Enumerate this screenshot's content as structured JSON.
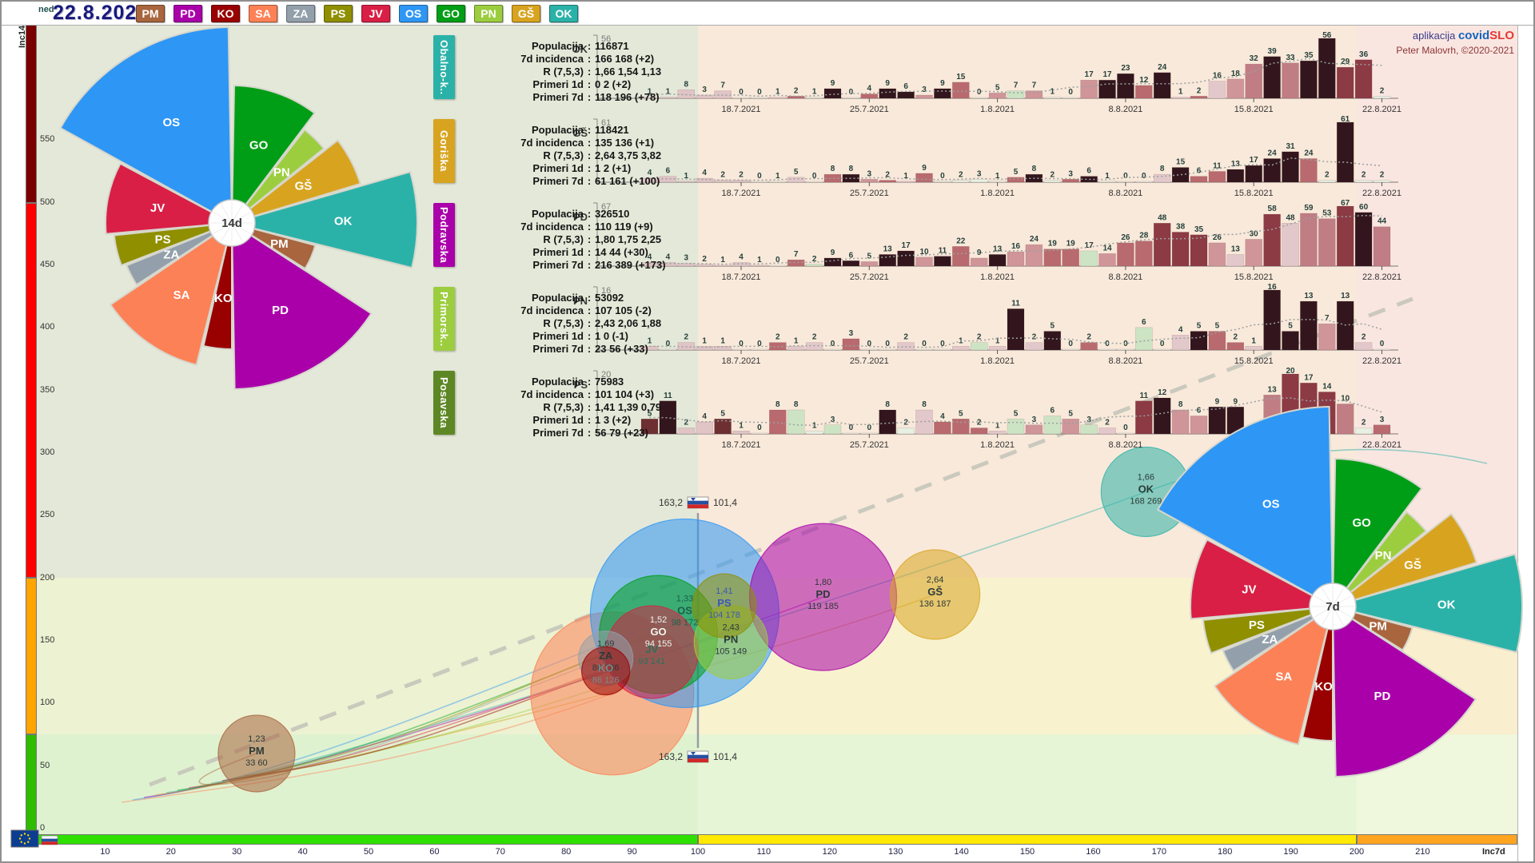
{
  "header": {
    "weekday_label": "ned",
    "date_label": "22.8.2021",
    "region_badges": [
      {
        "code": "PM",
        "color": "#a8653e"
      },
      {
        "code": "PD",
        "color": "#aa00aa"
      },
      {
        "code": "KO",
        "color": "#990000"
      },
      {
        "code": "SA",
        "color": "#fd8156"
      },
      {
        "code": "ZA",
        "color": "#93a0ab"
      },
      {
        "code": "PS",
        "color": "#8f8f00"
      },
      {
        "code": "JV",
        "color": "#d91f45"
      },
      {
        "code": "OS",
        "color": "#2e96f5"
      },
      {
        "code": "GO",
        "color": "#009e16"
      },
      {
        "code": "PN",
        "color": "#9ccd3f"
      },
      {
        "code": "GŠ",
        "color": "#d8a420"
      },
      {
        "code": "OK",
        "color": "#2bb2a8"
      }
    ]
  },
  "credit": {
    "prefix": "aplikacija ",
    "brand_blue": "covid",
    "brand_red": "SLO",
    "author_line": "Peter Malovrh, ©2020-2021"
  },
  "axis": {
    "y_label": "Inc14d",
    "x_label": "Inc7d",
    "y_ticks": [
      "0",
      "50",
      "100",
      "150",
      "200",
      "250",
      "300",
      "350",
      "400",
      "450",
      "500",
      "550"
    ],
    "x_ticks": [
      "10",
      "20",
      "30",
      "40",
      "50",
      "60",
      "70",
      "80",
      "90",
      "100",
      "110",
      "120",
      "130",
      "140",
      "150",
      "160",
      "170",
      "180",
      "190",
      "200",
      "210"
    ]
  },
  "national_markers": [
    {
      "left": "163,2",
      "right": "101,4"
    },
    {
      "left": "163,2",
      "right": "101,4"
    }
  ],
  "info_panels": [
    {
      "name": "Obalno-k..",
      "tab_color": "#2bb2a8",
      "rows": [
        {
          "label": "Populacija",
          "value": "116871"
        },
        {
          "label": "7d incidenca",
          "value": "166 168 (+2)"
        },
        {
          "label": "R (7,5,3)",
          "value": "1,66 1,54 1,13"
        },
        {
          "label": "Primeri 1d",
          "value": "0 2 (+2)"
        },
        {
          "label": "Primeri 7d",
          "value": "118 196 (+78)"
        }
      ]
    },
    {
      "name": "Goriška",
      "tab_color": "#d8a420",
      "rows": [
        {
          "label": "Populacija",
          "value": "118421"
        },
        {
          "label": "7d incidenca",
          "value": "135 136 (+1)"
        },
        {
          "label": "R (7,5,3)",
          "value": "2,64 3,75 3,82"
        },
        {
          "label": "Primeri 1d",
          "value": "1 2 (+1)"
        },
        {
          "label": "Primeri 7d",
          "value": "61 161 (+100)"
        }
      ]
    },
    {
      "name": "Podravska",
      "tab_color": "#aa00aa",
      "rows": [
        {
          "label": "Populacija",
          "value": "326510"
        },
        {
          "label": "7d incidenca",
          "value": "110 119 (+9)"
        },
        {
          "label": "R (7,5,3)",
          "value": "1,80 1,75 2,25"
        },
        {
          "label": "Primeri 1d",
          "value": "14 44 (+30)"
        },
        {
          "label": "Primeri 7d",
          "value": "216 389 (+173)"
        }
      ]
    },
    {
      "name": "Primorsk..",
      "tab_color": "#9ccd3f",
      "rows": [
        {
          "label": "Populacija",
          "value": "53092"
        },
        {
          "label": "7d incidenca",
          "value": "107 105 (-2)"
        },
        {
          "label": "R (7,5,3)",
          "value": "2,43 2,06 1,88"
        },
        {
          "label": "Primeri 1d",
          "value": "1 0 (-1)"
        },
        {
          "label": "Primeri 7d",
          "value": "23 56 (+33)"
        }
      ]
    },
    {
      "name": "Posavska",
      "tab_color": "#5d8724",
      "rows": [
        {
          "label": "Populacija",
          "value": "75983"
        },
        {
          "label": "7d incidenca",
          "value": "101 104 (+3)"
        },
        {
          "label": "R (7,5,3)",
          "value": "1,41 1,39 0,79"
        },
        {
          "label": "Primeri 1d",
          "value": "1 3 (+2)"
        },
        {
          "label": "Primeri 7d",
          "value": "56 79 (+23)"
        }
      ]
    }
  ],
  "chart_data": [
    {
      "type": "bar",
      "region": "OK",
      "ymax": 56,
      "values": [
        1,
        1,
        8,
        3,
        7,
        0,
        0,
        1,
        2,
        1,
        9,
        0,
        4,
        9,
        6,
        3,
        9,
        15,
        0,
        5,
        7,
        7,
        1,
        0,
        17,
        17,
        23,
        12,
        24,
        1,
        2,
        16,
        18,
        32,
        39,
        33,
        35,
        56,
        29,
        36,
        2
      ],
      "x_tick_labels": [
        "18.7.2021",
        "25.7.2021",
        "1.8.2021",
        "8.8.2021",
        "15.8.2021",
        "22.8.2021"
      ],
      "tick_days": [
        5,
        12,
        19,
        26,
        33,
        40
      ]
    },
    {
      "type": "bar",
      "region": "GŠ",
      "ymax": 61,
      "values": [
        4,
        6,
        1,
        4,
        2,
        2,
        0,
        1,
        5,
        0,
        8,
        8,
        3,
        2,
        1,
        9,
        0,
        2,
        3,
        1,
        5,
        8,
        2,
        3,
        6,
        1,
        0,
        0,
        8,
        15,
        6,
        11,
        13,
        17,
        24,
        31,
        24,
        2,
        61,
        2,
        2
      ],
      "x_tick_labels": [
        "18.7.2021",
        "25.7.2021",
        "1.8.2021",
        "8.8.2021",
        "15.8.2021",
        "22.8.2021"
      ],
      "tick_days": [
        5,
        12,
        19,
        26,
        33,
        40
      ]
    },
    {
      "type": "bar",
      "region": "PD",
      "ymax": 67,
      "values": [
        4,
        4,
        3,
        2,
        1,
        4,
        1,
        0,
        7,
        2,
        9,
        6,
        5,
        13,
        17,
        10,
        11,
        22,
        9,
        13,
        16,
        24,
        19,
        19,
        17,
        14,
        26,
        28,
        48,
        38,
        35,
        26,
        13,
        30,
        58,
        48,
        59,
        53,
        67,
        60,
        44
      ],
      "x_tick_labels": [
        "18.7.2021",
        "25.7.2021",
        "1.8.2021",
        "8.8.2021",
        "15.8.2021",
        "22.8.2021"
      ],
      "tick_days": [
        5,
        12,
        19,
        26,
        33,
        40
      ]
    },
    {
      "type": "bar",
      "region": "PN",
      "ymax": 16,
      "values": [
        1,
        0,
        2,
        1,
        1,
        0,
        0,
        2,
        1,
        2,
        0,
        3,
        0,
        0,
        2,
        0,
        0,
        1,
        2,
        1,
        11,
        2,
        5,
        0,
        2,
        0,
        0,
        6,
        0,
        4,
        5,
        5,
        2,
        1,
        16,
        5,
        13,
        7,
        13,
        2,
        0
      ],
      "x_tick_labels": [
        "18.7.2021",
        "25.7.2021",
        "1.8.2021",
        "8.8.2021",
        "15.8.2021",
        "22.8.2021"
      ],
      "tick_days": [
        5,
        12,
        19,
        26,
        33,
        40
      ]
    },
    {
      "type": "bar",
      "region": "PS",
      "ymax": 20,
      "values": [
        5,
        11,
        2,
        4,
        5,
        1,
        0,
        8,
        8,
        1,
        3,
        0,
        0,
        8,
        2,
        8,
        4,
        5,
        2,
        1,
        5,
        3,
        6,
        5,
        3,
        2,
        0,
        11,
        12,
        8,
        6,
        9,
        9,
        1,
        13,
        20,
        17,
        14,
        10,
        2,
        3
      ],
      "x_tick_labels": [
        "18.7.2021",
        "25.7.2021",
        "1.8.2021",
        "8.8.2021",
        "15.8.2021",
        "22.8.2021"
      ],
      "tick_days": [
        5,
        12,
        19,
        26,
        33,
        40
      ]
    },
    {
      "type": "scatter",
      "xlabel": "Inc7d",
      "ylabel": "Inc14d",
      "xlim": [
        0,
        224
      ],
      "ylim": [
        0,
        643
      ],
      "national": {
        "inc14d": "163,2",
        "inc7d": "101,4"
      },
      "points": [
        {
          "code": "SA",
          "r_value": "",
          "inc7d": 87,
          "inc14d": 108,
          "radius": 102,
          "show_labels": false
        },
        {
          "code": "OS",
          "r_value": "1,33",
          "inc7d": 98,
          "inc14d": 172,
          "radius": 118,
          "label_color": "#1d5f4c"
        },
        {
          "code": "PD",
          "r_value": "1,80",
          "inc7d": 119,
          "inc14d": 185,
          "radius": 92
        },
        {
          "code": "GŠ",
          "r_value": "2,64",
          "inc7d": 136,
          "inc14d": 187,
          "radius": 56
        },
        {
          "code": "OK",
          "r_value": "1,66",
          "inc7d": 168,
          "inc14d": 269,
          "radius": 56
        },
        {
          "code": "GO",
          "r_value": "1,52",
          "inc7d": 94,
          "inc14d": 155,
          "radius": 74,
          "label_color": "#eef7ee"
        },
        {
          "code": "JV",
          "r_value": "",
          "inc7d": 93,
          "inc14d": 141,
          "radius": 58,
          "label_color": "#2e6e5e"
        },
        {
          "code": "PN",
          "r_value": "2,43",
          "inc7d": 105,
          "inc14d": 149,
          "radius": 46
        },
        {
          "code": "ZA",
          "r_value": "1,69",
          "inc7d": 86,
          "inc14d": 136,
          "radius": 34
        },
        {
          "code": "KO",
          "r_value": "",
          "inc7d": 86,
          "inc14d": 126,
          "radius": 30,
          "label_color": "#7b8888"
        },
        {
          "code": "PS",
          "r_value": "1,41",
          "inc7d": 104,
          "inc14d": 178,
          "radius": 40,
          "label_color": "#3a57b5"
        },
        {
          "code": "PM",
          "r_value": "1,23",
          "inc7d": 33,
          "inc14d": 60,
          "radius": 48
        }
      ]
    },
    {
      "type": "pie",
      "id": "pie14d",
      "hub_label": "14d",
      "slices": [
        {
          "code": "GO",
          "sweep": 36,
          "radius": 172
        },
        {
          "code": "PN",
          "sweep": 13,
          "radius": 148
        },
        {
          "code": "GŠ",
          "sweep": 21,
          "radius": 168
        },
        {
          "code": "OK",
          "sweep": 30,
          "radius": 232
        },
        {
          "code": "PM",
          "sweep": 17,
          "radius": 108
        },
        {
          "code": "PD",
          "sweep": 56,
          "radius": 208
        },
        {
          "code": "KO",
          "sweep": 13,
          "radius": 158
        },
        {
          "code": "SA",
          "sweep": 42,
          "radius": 183
        },
        {
          "code": "ZA",
          "sweep": 11,
          "radius": 142
        },
        {
          "code": "PS",
          "sweep": 15,
          "radius": 148
        },
        {
          "code": "JV",
          "sweep": 33,
          "radius": 158
        },
        {
          "code": "OS",
          "sweep": 60,
          "radius": 245
        }
      ]
    },
    {
      "type": "pie",
      "id": "pie7d",
      "hub_label": "7d",
      "slices": [
        {
          "code": "GO",
          "sweep": 36,
          "radius": 185
        },
        {
          "code": "PN",
          "sweep": 13,
          "radius": 150
        },
        {
          "code": "GŠ",
          "sweep": 21,
          "radius": 188
        },
        {
          "code": "OK",
          "sweep": 30,
          "radius": 237
        },
        {
          "code": "PM",
          "sweep": 17,
          "radius": 103
        },
        {
          "code": "PD",
          "sweep": 56,
          "radius": 213
        },
        {
          "code": "KO",
          "sweep": 13,
          "radius": 168
        },
        {
          "code": "SA",
          "sweep": 42,
          "radius": 178
        },
        {
          "code": "ZA",
          "sweep": 11,
          "radius": 148
        },
        {
          "code": "PS",
          "sweep": 15,
          "radius": 163
        },
        {
          "code": "JV",
          "sweep": 33,
          "radius": 178
        },
        {
          "code": "OS",
          "sweep": 60,
          "radius": 250
        }
      ]
    }
  ]
}
